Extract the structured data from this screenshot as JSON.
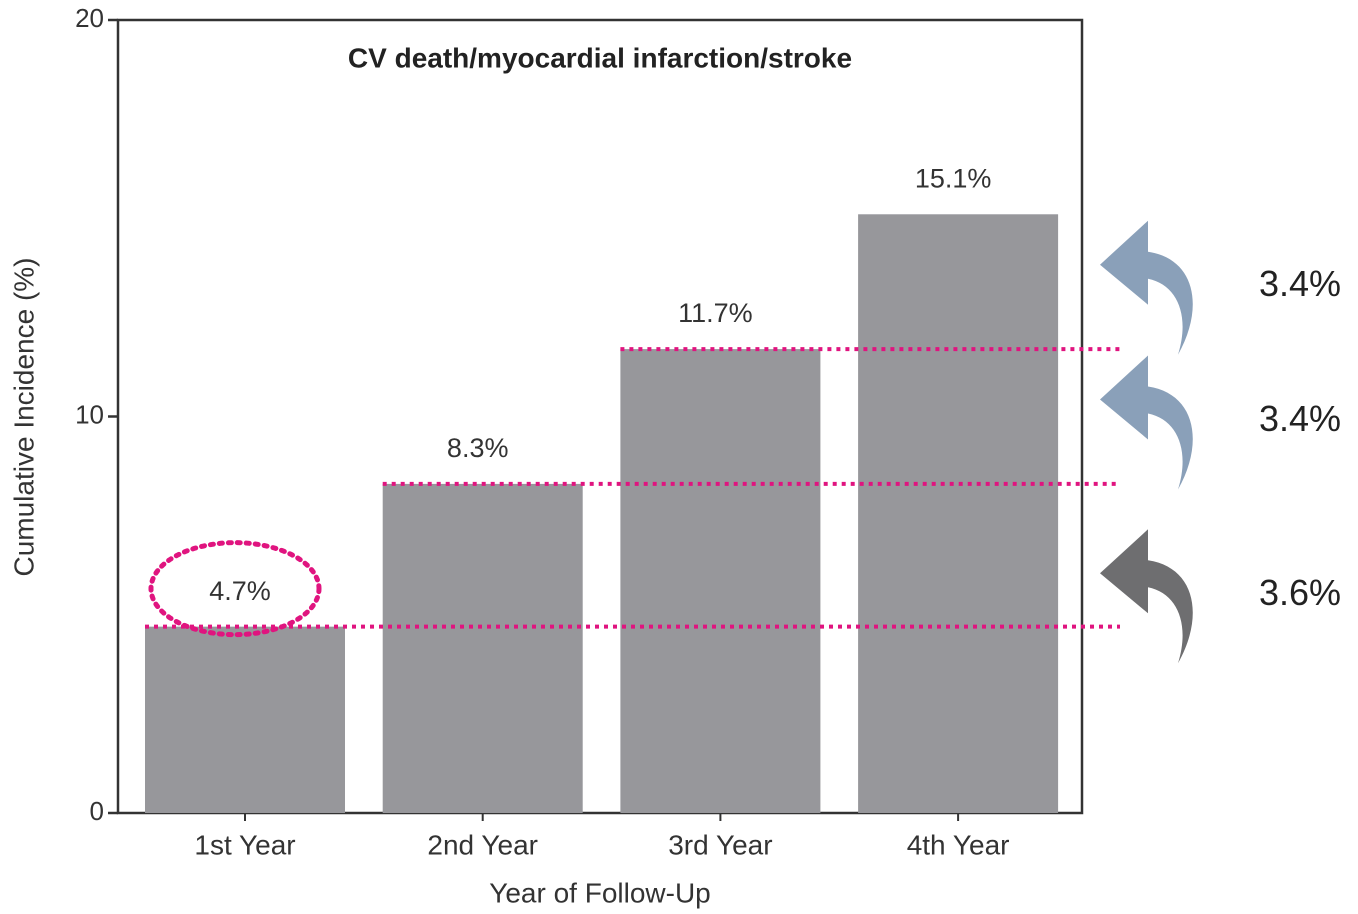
{
  "chart_data": {
    "type": "bar",
    "title": "CV death/myocardial infarction/stroke",
    "x_label": "Year of Follow-Up",
    "y_label": "Cumulative Incidence (%)",
    "categories": [
      "1st Year",
      "2nd Year",
      "3rd Year",
      "4th Year"
    ],
    "values": [
      4.7,
      8.3,
      11.7,
      15.1
    ],
    "value_labels": [
      "4.7%",
      "8.3%",
      "11.7%",
      "15.1%"
    ],
    "color": "#97979b",
    "ylim": [
      0,
      20
    ],
    "yticks": [
      0,
      10,
      20
    ],
    "increments": [
      {
        "value": 3.6,
        "label": "3.6%"
      },
      {
        "value": 3.4,
        "label": "3.4%"
      },
      {
        "value": 3.4,
        "label": "3.4%"
      }
    ],
    "increment_colors": [
      "#6e6e70",
      "#8aa0b9",
      "#8aa0b9"
    ],
    "guide_color": "#e0147f"
  }
}
